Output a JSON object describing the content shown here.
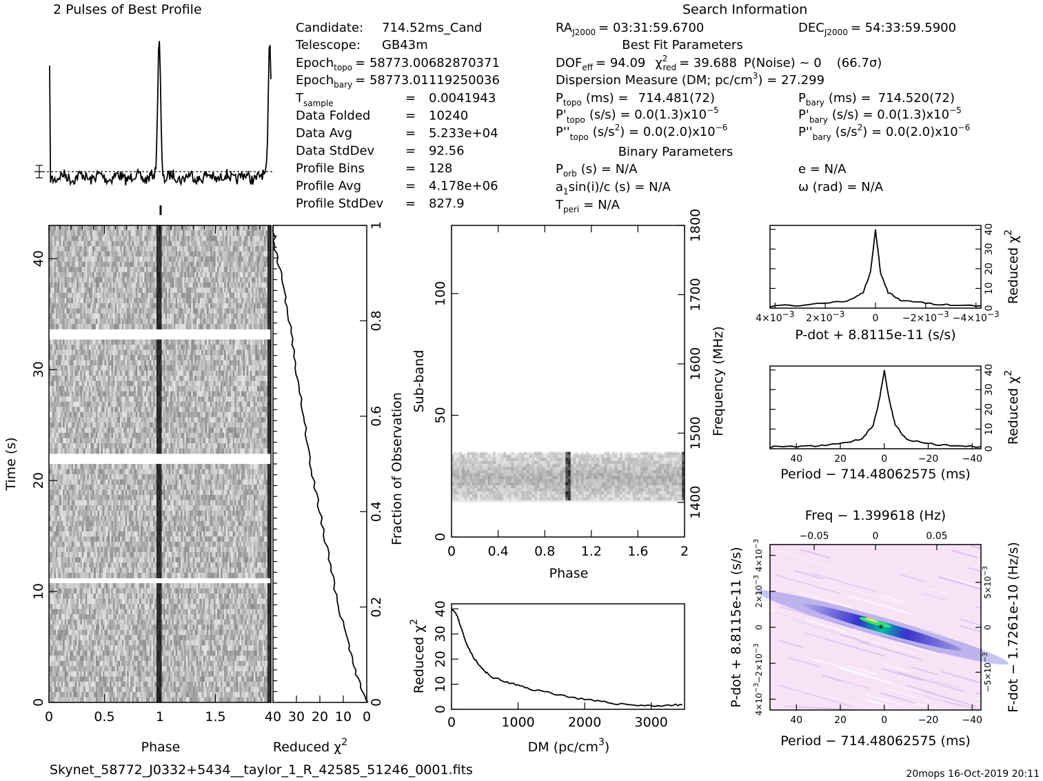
{
  "title_profile": "2 Pulses of Best Profile",
  "title_search": "Search Information",
  "search_info": {
    "candidate_label": "Candidate:",
    "candidate_value": "714.52ms_Cand",
    "telescope_label": "Telescope:",
    "telescope_value": "GB43m",
    "epoch_topo_label": "Epoch",
    "epoch_topo_sub": "topo",
    "epoch_topo_value": "= 58773.0068287037​1",
    "epoch_bary_label": "Epoch",
    "epoch_bary_sub": "bary",
    "epoch_bary_value": "= 58773.01119250036",
    "rows": [
      {
        "label": "T",
        "sub": "sample",
        "value": "0.0041943"
      },
      {
        "label": "Data Folded",
        "sub": "",
        "value": "10240"
      },
      {
        "label": "Data Avg",
        "sub": "",
        "value": "5.233e+04"
      },
      {
        "label": "Data StdDev",
        "sub": "",
        "value": "92.56"
      },
      {
        "label": "Profile Bins",
        "sub": "",
        "value": "128"
      },
      {
        "label": "Profile Avg",
        "sub": "",
        "value": "4.178e+06"
      },
      {
        "label": "Profile StdDev",
        "sub": "",
        "value": "827.9"
      }
    ],
    "equals": "="
  },
  "ra": {
    "label": "RA",
    "sub": "J2000",
    "value": "= 03:31:59.6700"
  },
  "dec": {
    "label": "DEC",
    "sub": "J2000",
    "value": "= 54:33:59.5900"
  },
  "best_fit_title": "Best Fit Parameters",
  "dof_line": {
    "a": "DOF",
    "a_sub": "eff",
    "a_val": "= 94.09",
    "b": "χ",
    "b_sup": "2",
    "b_sub": "red",
    "b_val": "= 39.688",
    "c": "P(Noise) ~ 0",
    "d": "(66.7σ)"
  },
  "dm_line": "Dispersion Measure (DM; pc/cm",
  "dm_sup": "3",
  "dm_val": ") = 27.299",
  "p_topo": {
    "label": "P",
    "sub": "topo",
    "rest": "(ms) =",
    "value": "714.481(72)"
  },
  "p_bary": {
    "label": "P",
    "sub": "bary",
    "rest": "(ms) =",
    "value": "714.520(72)"
  },
  "pd_topo": {
    "label": "P'",
    "sub": "topo",
    "rest": "(s/s) = 0.0(1.3)x10",
    "exp": "−5"
  },
  "pd_bary": {
    "label": "P'",
    "sub": "bary",
    "rest": "(s/s) = 0.0(1.3)x10",
    "exp": "−5"
  },
  "pdd_topo": {
    "label": "P''",
    "sub": "topo",
    "rest": "(s/s",
    "sup2": "2",
    "rest2": ") = 0.0(2.0)x10",
    "exp": "−6"
  },
  "pdd_bary": {
    "label": "P''",
    "sub": "bary",
    "rest": "(s/s",
    "sup2": "2",
    "rest2": ") = 0.0(2.0)x10",
    "exp": "−6"
  },
  "binary_title": "Binary Parameters",
  "porb": {
    "label": "P",
    "sub": "orb",
    "rest": "(s) = N/A"
  },
  "asini": {
    "label": "a",
    "sub": "1",
    "rest": "sin(i)/c (s) = N/A"
  },
  "tperi": {
    "label": "T",
    "sub": "peri",
    "rest": "= N/A"
  },
  "ecc": "e = N/A",
  "omega": "ω (rad) = N/A",
  "filename": "Skynet_58772_J0332+5434__taylor_1_R_42585_51246_0001.fits",
  "footer_right": "20mops 16-Oct-2019 20:11",
  "colors": {
    "axis": "#000000",
    "grey_dark": "#1a1a1a",
    "contour_low": "#f4dff5",
    "contour_mid": "#2c2cd8",
    "contour_high": "#33e08c"
  },
  "chart_data": [
    {
      "type": "line",
      "name": "pulse-profile",
      "title": "2 Pulses of Best Profile",
      "x_range": [
        0,
        2
      ],
      "peak_phase": [
        0.99,
        1.99
      ],
      "baseline_level": "dashed"
    },
    {
      "type": "heatmap",
      "name": "time-phase",
      "xlabel": "Phase",
      "ylabel": "Time (s)",
      "xlim": [
        0,
        2
      ],
      "ylim": [
        0,
        43
      ],
      "x_ticks": [
        "0",
        "0.5",
        "1",
        "1.5"
      ],
      "y_ticks": [
        "0",
        "10",
        "20",
        "30",
        "40"
      ],
      "gaps_time_s": [
        11.0,
        21.8,
        33.0
      ]
    },
    {
      "type": "line",
      "name": "reduced-chi2-vs-fraction",
      "xlabel": "Reduced χ",
      "xlabel_sup": "2",
      "ylabel": "Fraction of Observation",
      "x_ticks": [
        "40",
        "30",
        "20",
        "10",
        "0"
      ],
      "y_ticks": [
        "0",
        "0.2",
        "0.4",
        "0.6",
        "0.8",
        "1"
      ],
      "x_reversed": true,
      "xlim": [
        40,
        0
      ],
      "ylim": [
        0,
        1
      ],
      "points": [
        [
          0,
          0
        ],
        [
          4,
          0.05
        ],
        [
          8,
          0.12
        ],
        [
          12,
          0.2
        ],
        [
          16,
          0.3
        ],
        [
          20,
          0.4
        ],
        [
          24,
          0.5
        ],
        [
          27,
          0.6
        ],
        [
          30,
          0.7
        ],
        [
          33,
          0.8
        ],
        [
          36,
          0.88
        ],
        [
          39,
          0.95
        ],
        [
          40,
          1
        ]
      ]
    },
    {
      "type": "heatmap",
      "name": "subband-phase",
      "xlabel": "Phase",
      "ylabel": "Sub-band",
      "ylabel2": "Frequency (MHz)",
      "xlim": [
        0,
        2
      ],
      "ylim": [
        0,
        128
      ],
      "x_ticks": [
        "0",
        "0.4",
        "0.8",
        "1.2",
        "1.6",
        "2"
      ],
      "y_ticks": [
        "0",
        "50",
        "100"
      ],
      "y2_ticks": [
        "1400",
        "1500",
        "1600",
        "1700",
        "1800"
      ],
      "band_subbands": [
        15,
        35
      ],
      "pulse_phase": [
        1.0,
        2.0
      ]
    },
    {
      "type": "line",
      "name": "chi2-vs-dm",
      "xlabel": "DM (pc/cm",
      "xlabel_sup": "3",
      "xlabel_end": ")",
      "ylabel": "Reduced χ",
      "ylabel_sup": "2",
      "xlim": [
        0,
        3500
      ],
      "ylim": [
        0,
        42
      ],
      "x_ticks": [
        "0",
        "1000",
        "2000",
        "3000"
      ],
      "y_ticks": [
        "0",
        "10",
        "20",
        "30",
        "40"
      ],
      "points": [
        [
          0,
          40
        ],
        [
          50,
          39
        ],
        [
          100,
          36
        ],
        [
          150,
          32
        ],
        [
          200,
          28
        ],
        [
          300,
          22
        ],
        [
          400,
          18
        ],
        [
          500,
          15
        ],
        [
          600,
          13
        ],
        [
          800,
          11
        ],
        [
          1000,
          9.5
        ],
        [
          1200,
          8
        ],
        [
          1500,
          6.5
        ],
        [
          1800,
          4.8
        ],
        [
          2100,
          3.5
        ],
        [
          2400,
          2.5
        ],
        [
          2700,
          1.8
        ],
        [
          3000,
          1.4
        ],
        [
          3300,
          1.6
        ],
        [
          3500,
          1.8
        ]
      ]
    },
    {
      "type": "line",
      "name": "chi2-vs-pdot",
      "xlabel": "P-dot + 8.8115e-11 (s/s)",
      "ylabel": "Reduced χ",
      "ylabel_sup": "2",
      "xlim": [
        0.0042,
        -0.0042
      ],
      "ylim": [
        0,
        42
      ],
      "x_ticks": [
        "4×10",
        "2×10",
        "0",
        "−2×10",
        "−4×10"
      ],
      "x_tick_exp": "−3",
      "y_ticks": [
        "0",
        "10",
        "20",
        "30",
        "40"
      ],
      "points": [
        [
          0.0042,
          1
        ],
        [
          0.003,
          1.5
        ],
        [
          0.002,
          2.2
        ],
        [
          0.001,
          4
        ],
        [
          0.0005,
          8
        ],
        [
          0.0002,
          18
        ],
        [
          0,
          40
        ],
        [
          -0.0002,
          18
        ],
        [
          -0.0005,
          8
        ],
        [
          -0.001,
          4
        ],
        [
          -0.002,
          2.5
        ],
        [
          -0.003,
          1.6
        ],
        [
          -0.0042,
          1.2
        ]
      ]
    },
    {
      "type": "line",
      "name": "chi2-vs-period",
      "xlabel": "Period − 714.48062575 (ms)",
      "ylabel": "Reduced χ",
      "ylabel_sup": "2",
      "xlim": [
        52,
        -44
      ],
      "ylim": [
        0,
        42
      ],
      "x_ticks": [
        "40",
        "20",
        "0",
        "−20",
        "−40"
      ],
      "y_ticks": [
        "0",
        "10",
        "20",
        "30",
        "40"
      ],
      "points": [
        [
          52,
          1
        ],
        [
          40,
          1.2
        ],
        [
          30,
          1.5
        ],
        [
          20,
          2.5
        ],
        [
          10,
          5
        ],
        [
          5,
          12
        ],
        [
          2,
          26
        ],
        [
          0,
          40
        ],
        [
          -2,
          26
        ],
        [
          -5,
          12
        ],
        [
          -10,
          5
        ],
        [
          -20,
          2.5
        ],
        [
          -30,
          1.5
        ],
        [
          -44,
          1
        ]
      ]
    },
    {
      "type": "heatmap",
      "name": "pdot-period-plane",
      "title": "Freq − 1.399618 (Hz)",
      "xlabel": "Period − 714.48062575 (ms)",
      "ylabel": "P-dot + 8.8115e-11 (s/s)",
      "ylabel2": "F-dot − 1.7261e-10 (Hz/s)",
      "x_ticks": [
        "40",
        "20",
        "0",
        "−20",
        "−40"
      ],
      "top_ticks": [
        "−0.05",
        "0",
        "0.05"
      ],
      "y_ticks": [
        "4×10",
        "2×10",
        "0",
        "−2×10",
        "4×10"
      ],
      "y_tick_exp": "−3",
      "y2_ticks": [
        "−5×10",
        "0",
        "5×10"
      ],
      "y2_tick_exp": "−3"
    }
  ]
}
